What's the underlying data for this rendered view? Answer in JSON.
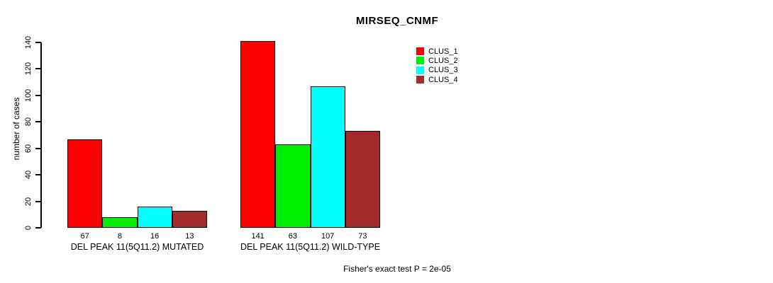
{
  "page": {
    "background_color": "#FFFFFF",
    "text_color": "#000000"
  },
  "footer": "Fisher's exact test P = 2e-05",
  "chart_data": {
    "type": "bar",
    "title": "MIRSEQ_CNMF",
    "xlabel": "",
    "ylabel": "number of cases",
    "ylim": [
      0,
      140
    ],
    "yticks": [
      0,
      20,
      40,
      60,
      80,
      100,
      120,
      140
    ],
    "grid": false,
    "legend_position": "top-right",
    "bar_value_labels_shown": true,
    "categories": [
      "DEL PEAK 11(5Q11.2) MUTATED",
      "DEL PEAK 11(5Q11.2) WILD-TYPE"
    ],
    "series": [
      {
        "name": "CLUS_1",
        "color": "#FF0000",
        "values": [
          67,
          141
        ]
      },
      {
        "name": "CLUS_2",
        "color": "#00EE00",
        "values": [
          8,
          63
        ]
      },
      {
        "name": "CLUS_3",
        "color": "#00FFFF",
        "values": [
          16,
          107
        ]
      },
      {
        "name": "CLUS_4",
        "color": "#A52A2A",
        "values": [
          13,
          73
        ]
      }
    ],
    "annotation": "Fisher's exact test P = 2e-05"
  }
}
